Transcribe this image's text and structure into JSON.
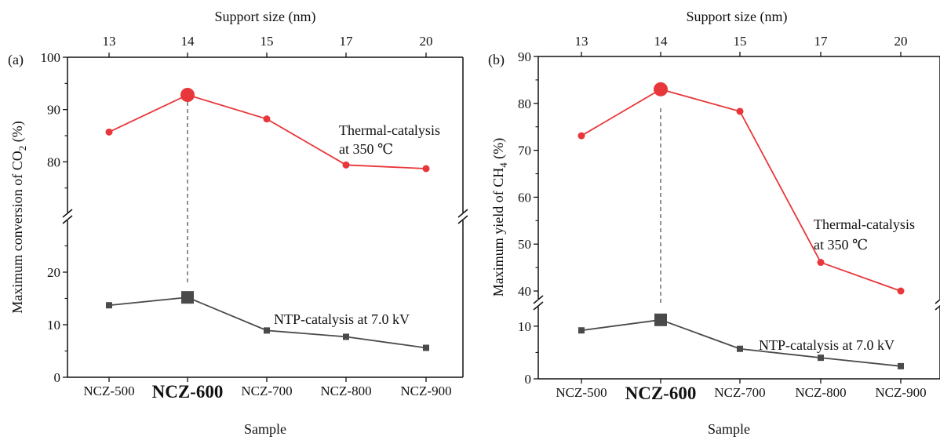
{
  "chart_data": [
    {
      "type": "line",
      "panel_label": "(a)",
      "xlabel": "Sample",
      "x2label": "Support size (nm)",
      "ylabel_main": "Maximum conversion of CO",
      "ylabel_sub": "2",
      "ylabel_tail": " (%)",
      "categories": [
        "NCZ-500",
        "NCZ-600",
        "NCZ-700",
        "NCZ-800",
        "NCZ-900"
      ],
      "highlight_category": "NCZ-600",
      "support_sizes": [
        "13",
        "14",
        "15",
        "17",
        "20"
      ],
      "y_axis_break": true,
      "ylim_lower": [
        0,
        30
      ],
      "ylim_upper": [
        70,
        100
      ],
      "yticks_lower": [
        0,
        10,
        20
      ],
      "yticks_upper": [
        80,
        90,
        100
      ],
      "series": [
        {
          "annotation": [
            "Thermal-catalysis",
            "at 350 ℃"
          ],
          "color": "#e8373a",
          "marker": "circle",
          "values": [
            85.7,
            92.8,
            88.2,
            79.4,
            78.7
          ]
        },
        {
          "annotation": [
            "NTP-catalysis at 7.0 kV"
          ],
          "color": "#4a4a4a",
          "marker": "square",
          "values": [
            13.7,
            15.2,
            8.9,
            7.7,
            5.6
          ]
        }
      ]
    },
    {
      "type": "line",
      "panel_label": "(b)",
      "xlabel": "Sample",
      "x2label": "Support size (nm)",
      "ylabel_main": "Maximum yield of CH",
      "ylabel_sub": "4",
      "ylabel_tail": " (%)",
      "categories": [
        "NCZ-500",
        "NCZ-600",
        "NCZ-700",
        "NCZ-800",
        "NCZ-900"
      ],
      "highlight_category": "NCZ-600",
      "support_sizes": [
        "13",
        "14",
        "15",
        "17",
        "20"
      ],
      "y_axis_break": true,
      "ylim_lower": [
        0,
        14
      ],
      "ylim_upper": [
        38,
        90
      ],
      "yticks_lower": [
        0,
        10
      ],
      "yticks_upper": [
        40,
        50,
        60,
        70,
        80,
        90
      ],
      "series": [
        {
          "annotation": [
            "Thermal-catalysis",
            "at 350 ℃"
          ],
          "color": "#e8373a",
          "marker": "circle",
          "values": [
            73.1,
            83.0,
            78.3,
            46.1,
            40.0
          ]
        },
        {
          "annotation": [
            "NTP-catalysis at 7.0 kV"
          ],
          "color": "#4a4a4a",
          "marker": "square",
          "values": [
            9.2,
            11.2,
            5.7,
            4.0,
            2.4
          ]
        }
      ]
    }
  ]
}
